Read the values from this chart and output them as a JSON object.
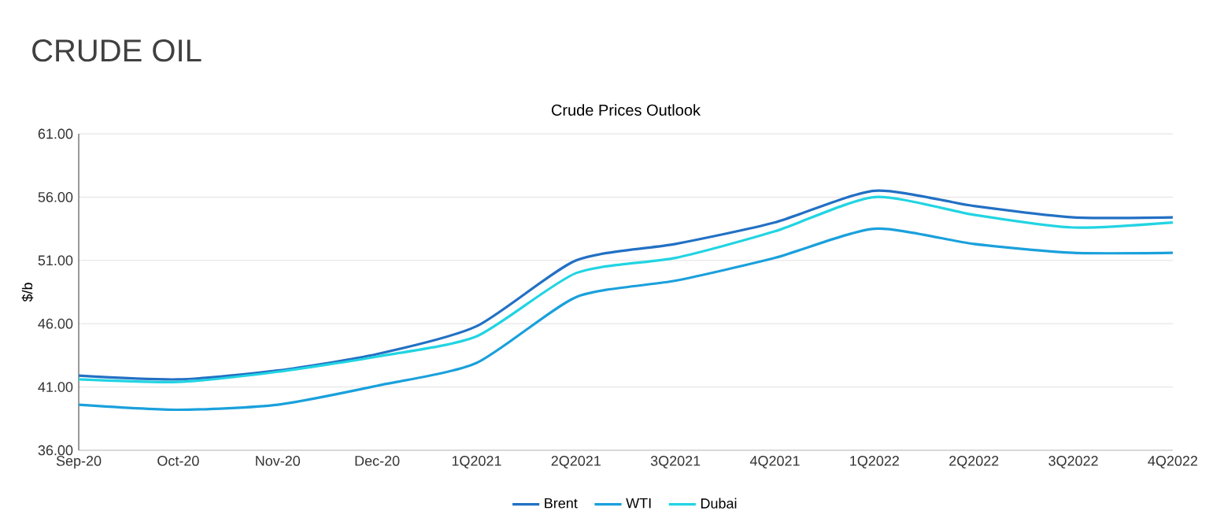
{
  "chart_data": {
    "type": "line",
    "title": "CRUDE OIL",
    "subtitle": "Crude Prices Outlook",
    "ylabel": "$/b",
    "categories": [
      "Sep-20",
      "Oct-20",
      "Nov-20",
      "Dec-20",
      "1Q2021",
      "2Q2021",
      "3Q2021",
      "4Q2021",
      "1Q2022",
      "2Q2022",
      "3Q2022",
      "4Q2022"
    ],
    "series": [
      {
        "name": "Brent",
        "color": "#2270c4",
        "values": [
          41.9,
          41.6,
          42.3,
          43.6,
          45.8,
          51.0,
          52.3,
          54.0,
          56.5,
          55.3,
          54.4,
          54.4
        ]
      },
      {
        "name": "WTI",
        "color": "#1aa0dc",
        "values": [
          39.6,
          39.2,
          39.6,
          41.1,
          42.9,
          48.1,
          49.4,
          51.2,
          53.5,
          52.3,
          51.6,
          51.6
        ]
      },
      {
        "name": "Dubai",
        "color": "#22d4e2",
        "values": [
          41.6,
          41.4,
          42.2,
          43.4,
          45.0,
          50.0,
          51.2,
          53.3,
          56.0,
          54.6,
          53.6,
          54.0
        ]
      }
    ],
    "ylim": [
      36,
      61
    ],
    "yticks": [
      {
        "value": 36,
        "label": "36.00"
      },
      {
        "value": 41,
        "label": "41.00"
      },
      {
        "value": 46,
        "label": "46.00"
      },
      {
        "value": 51,
        "label": "51.00"
      },
      {
        "value": 56,
        "label": "56.00"
      },
      {
        "value": 61,
        "label": "61.00"
      }
    ],
    "grid": "y",
    "legend": "bottom",
    "marker": "none",
    "line_style": "solid"
  }
}
